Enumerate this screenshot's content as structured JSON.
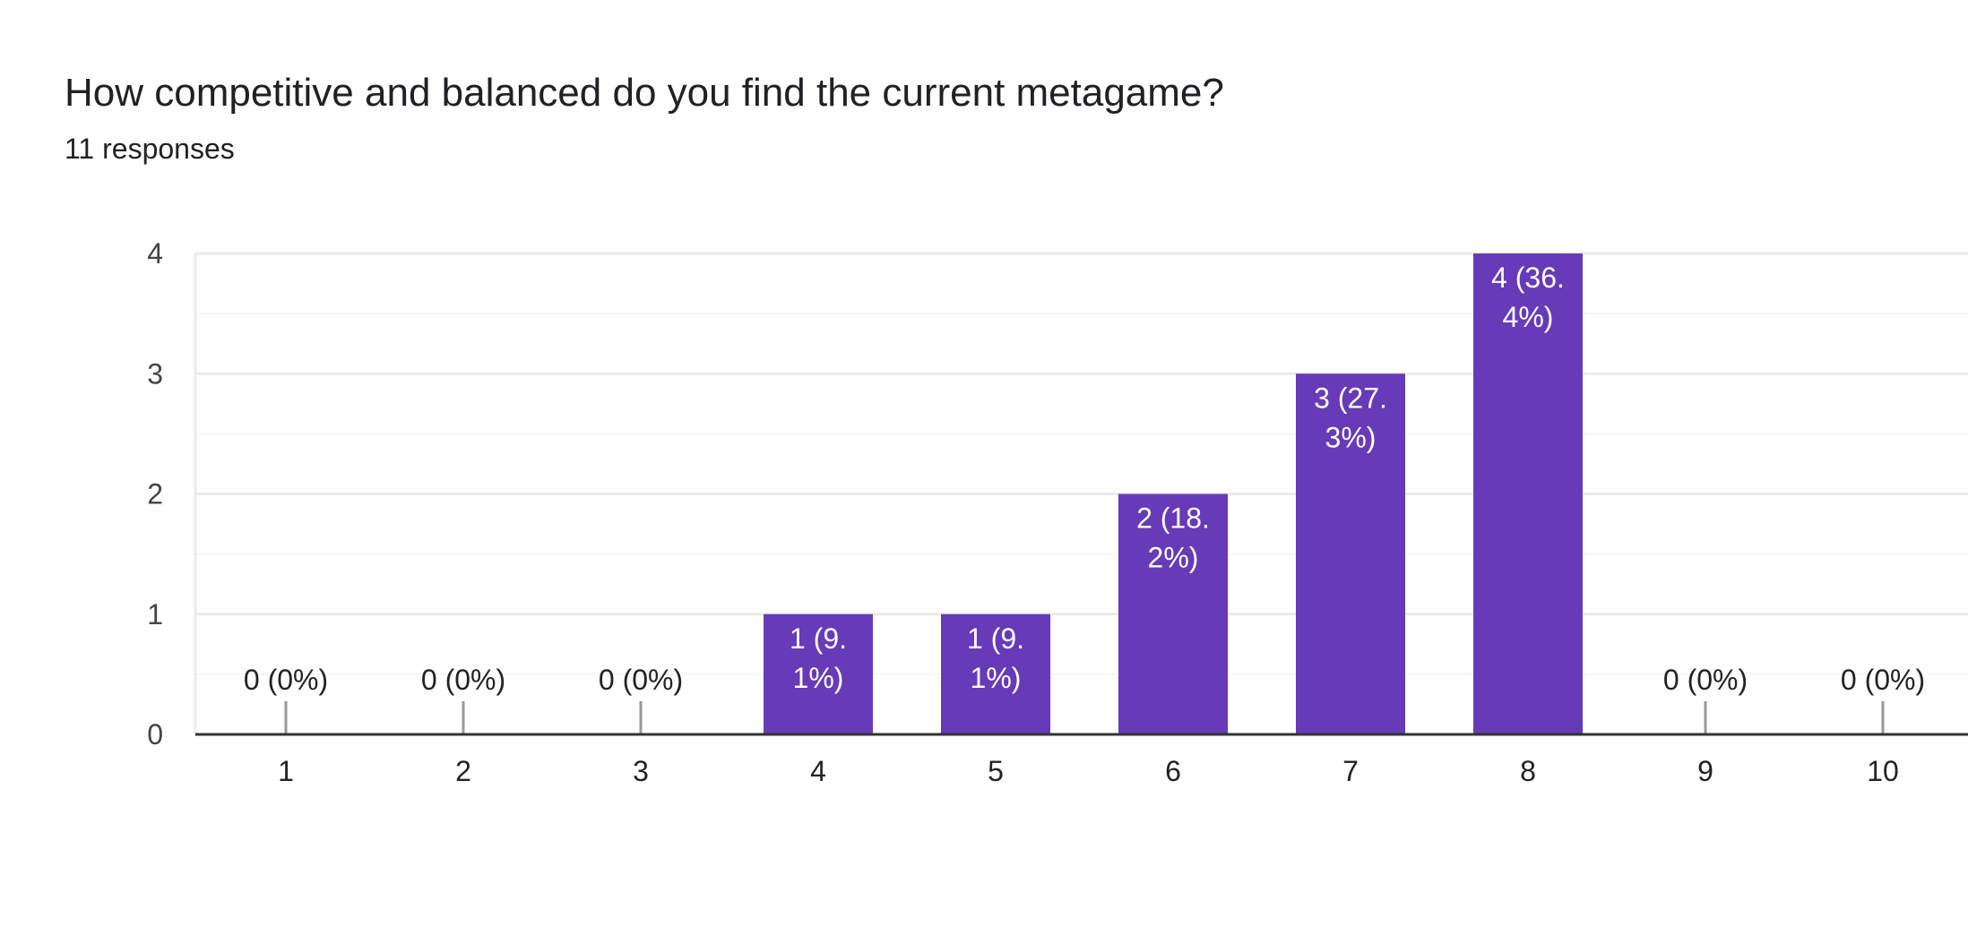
{
  "header": {
    "title": "How competitive and balanced do you find the current metagame?",
    "response_count": "11 responses"
  },
  "colors": {
    "bar": "#673ab7",
    "gridline": "#ebebeb",
    "minor_gridline": "#f5f5f5",
    "axis": "#333333",
    "zero_stem": "#999999"
  },
  "chart_data": {
    "type": "bar",
    "title": "How competitive and balanced do you find the current metagame?",
    "xlabel": "",
    "ylabel": "",
    "categories": [
      "1",
      "2",
      "3",
      "4",
      "5",
      "6",
      "7",
      "8",
      "9",
      "10"
    ],
    "values": [
      0,
      0,
      0,
      1,
      1,
      2,
      3,
      4,
      0,
      0
    ],
    "data_labels": [
      [
        "0 (0%)"
      ],
      [
        "0 (0%)"
      ],
      [
        "0 (0%)"
      ],
      [
        "1 (9.",
        "1%)"
      ],
      [
        "1 (9.",
        "1%)"
      ],
      [
        "2 (18.",
        "2%)"
      ],
      [
        "3 (27.",
        "3%)"
      ],
      [
        "4 (36.",
        "4%)"
      ],
      [
        "0 (0%)"
      ],
      [
        "0 (0%)"
      ]
    ],
    "ylim": [
      0,
      4
    ],
    "yticks": [
      "0",
      "1",
      "2",
      "3",
      "4"
    ],
    "grid": true,
    "legend": "none"
  }
}
